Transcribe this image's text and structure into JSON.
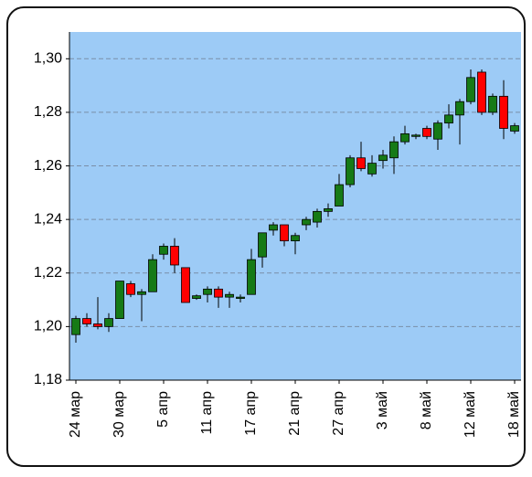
{
  "chart_data": {
    "type": "candlestick",
    "categories": [
      "24 мар",
      null,
      null,
      null,
      "30 мар",
      null,
      null,
      null,
      "5 апр",
      null,
      null,
      null,
      "11 апр",
      null,
      null,
      null,
      "17 апр",
      null,
      null,
      null,
      "21 апр",
      null,
      null,
      null,
      "27 апр",
      null,
      null,
      null,
      "3 май",
      null,
      null,
      null,
      "8 май",
      null,
      null,
      null,
      "12 май",
      null,
      null,
      null,
      "18 май"
    ],
    "open": [
      1.197,
      1.203,
      1.201,
      1.2,
      1.203,
      1.216,
      1.212,
      1.213,
      1.227,
      1.23,
      1.222,
      1.2105,
      1.212,
      1.214,
      1.211,
      1.2105,
      1.212,
      1.226,
      1.236,
      1.238,
      1.232,
      1.238,
      1.239,
      1.243,
      1.245,
      1.253,
      1.263,
      1.257,
      1.262,
      1.263,
      1.269,
      1.271,
      1.274,
      1.27,
      1.276,
      1.279,
      1.284,
      1.295,
      1.28,
      1.286,
      1.273
    ],
    "high": [
      1.204,
      1.205,
      1.211,
      1.205,
      1.217,
      1.217,
      1.214,
      1.227,
      1.231,
      1.233,
      1.222,
      1.212,
      1.215,
      1.215,
      1.213,
      1.212,
      1.229,
      1.235,
      1.239,
      1.238,
      1.235,
      1.241,
      1.244,
      1.246,
      1.257,
      1.264,
      1.269,
      1.264,
      1.266,
      1.271,
      1.275,
      1.272,
      1.275,
      1.277,
      1.283,
      1.285,
      1.296,
      1.296,
      1.287,
      1.292,
      1.276
    ],
    "low": [
      1.194,
      1.2,
      1.199,
      1.198,
      1.203,
      1.211,
      1.202,
      1.213,
      1.225,
      1.22,
      1.209,
      1.21,
      1.209,
      1.207,
      1.207,
      1.209,
      1.212,
      1.222,
      1.234,
      1.23,
      1.227,
      1.236,
      1.237,
      1.241,
      1.245,
      1.252,
      1.258,
      1.256,
      1.259,
      1.257,
      1.268,
      1.27,
      1.27,
      1.266,
      1.274,
      1.268,
      1.283,
      1.279,
      1.279,
      1.27,
      1.272
    ],
    "close": [
      1.203,
      1.201,
      1.2,
      1.203,
      1.217,
      1.212,
      1.213,
      1.225,
      1.23,
      1.223,
      1.209,
      1.2115,
      1.214,
      1.211,
      1.212,
      1.211,
      1.225,
      1.235,
      1.238,
      1.232,
      1.234,
      1.24,
      1.243,
      1.244,
      1.253,
      1.263,
      1.259,
      1.261,
      1.264,
      1.269,
      1.272,
      1.2715,
      1.271,
      1.276,
      1.279,
      1.284,
      1.293,
      1.28,
      1.286,
      1.274,
      1.275
    ],
    "up_color": "#167a16",
    "down_color": "#ff0000",
    "plot_color": "#9dcbf6",
    "ylim": [
      1.18,
      1.31
    ],
    "yticks": [
      {
        "value": 1.18,
        "label": "1,18"
      },
      {
        "value": 1.2,
        "label": "1,20"
      },
      {
        "value": 1.22,
        "label": "1,22"
      },
      {
        "value": 1.24,
        "label": "1,24"
      },
      {
        "value": 1.26,
        "label": "1,26"
      },
      {
        "value": 1.28,
        "label": "1,28"
      },
      {
        "value": 1.3,
        "label": "1,30"
      }
    ],
    "grid": true
  }
}
